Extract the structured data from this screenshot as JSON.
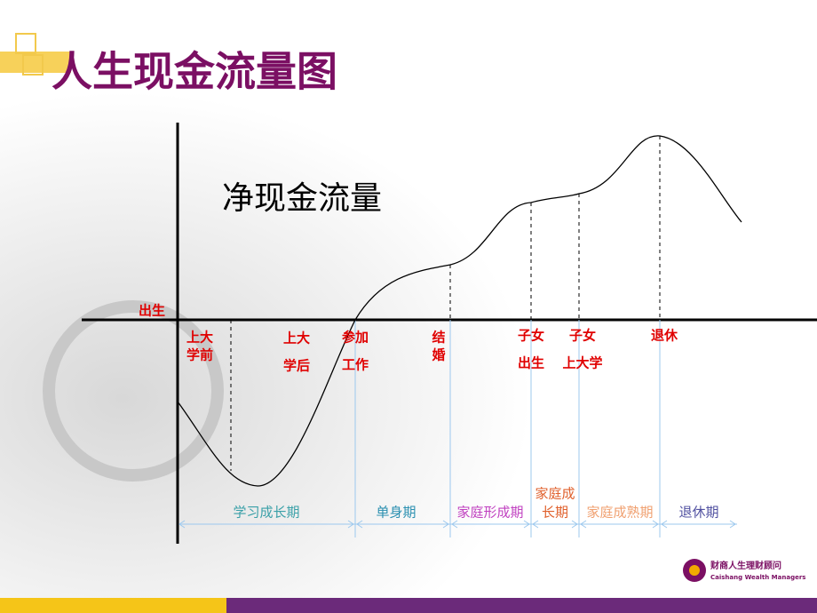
{
  "header": {
    "title": "人生现金流量图"
  },
  "diagram": {
    "y_axis_label": "净现金流量",
    "origin_label": "出生",
    "events": [
      {
        "lines": [
          "上大",
          "学前"
        ]
      },
      {
        "lines": [
          "上大",
          "学后"
        ]
      },
      {
        "lines": [
          "参加",
          "工作"
        ]
      },
      {
        "lines": [
          "结",
          "婚"
        ]
      },
      {
        "lines": [
          "子女",
          "出生"
        ]
      },
      {
        "lines": [
          "子女",
          "上大学"
        ]
      },
      {
        "lines": [
          "退休"
        ]
      }
    ],
    "phases": [
      {
        "lines": [
          "学习成长期"
        ]
      },
      {
        "lines": [
          "单身期"
        ]
      },
      {
        "lines": [
          "家庭形成期"
        ]
      },
      {
        "lines": [
          "家庭成",
          "长期"
        ]
      },
      {
        "lines": [
          "家庭成熟期"
        ]
      },
      {
        "lines": [
          "退休期"
        ]
      }
    ]
  },
  "logo": {
    "name": "财商人生理财顾问",
    "english": "Caishang Wealth Managers"
  }
}
